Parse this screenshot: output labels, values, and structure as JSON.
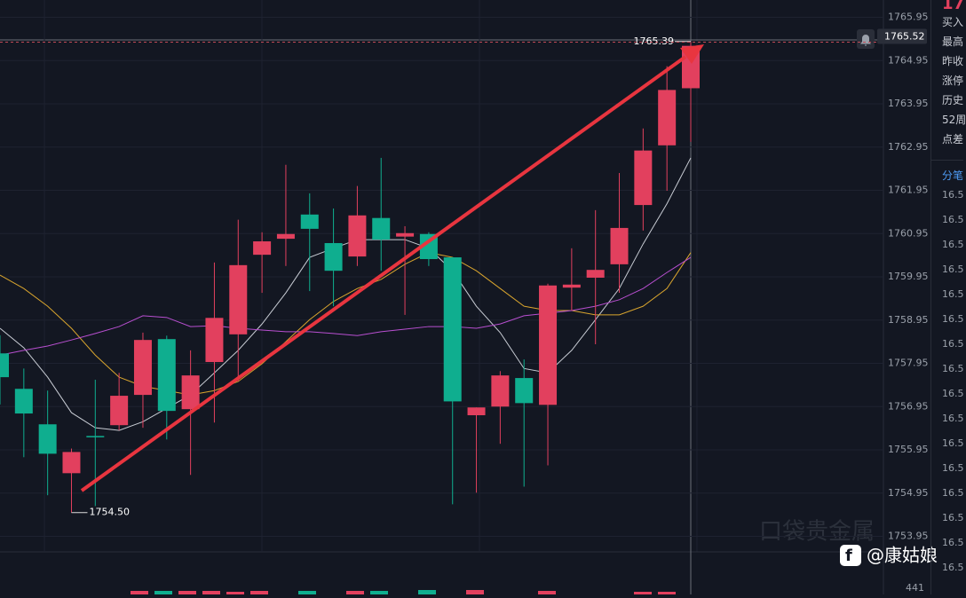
{
  "chart_data": {
    "type": "candlestick",
    "open": [
      1758.18,
      1757.36,
      1756.54,
      1755.41,
      1756.27,
      1756.52,
      1757.22,
      1758.51,
      1756.89,
      1757.98,
      1758.62,
      1760.46,
      1760.83,
      1761.39,
      1760.73,
      1760.42,
      1761.31,
      1760.88,
      1760.94,
      1760.4,
      1756.75,
      1756.95,
      1757.61,
      1756.99,
      1759.7,
      1759.93,
      1760.24,
      1761.61,
      1762.99,
      1764.31
    ],
    "high": [
      1758.6,
      1757.83,
      1757.32,
      1755.98,
      1757.57,
      1757.73,
      1758.66,
      1758.59,
      1758.25,
      1760.28,
      1761.27,
      1760.98,
      1762.54,
      1761.88,
      1761.53,
      1762.05,
      1762.7,
      1761.12,
      1760.98,
      1760.4,
      1756.93,
      1757.77,
      1758.04,
      1759.79,
      1760.61,
      1761.49,
      1762.35,
      1763.38,
      1764.82,
      1765.39
    ],
    "low": [
      1757.0,
      1755.78,
      1754.9,
      1754.5,
      1754.65,
      1756.4,
      1756.46,
      1756.19,
      1755.37,
      1756.58,
      1757.53,
      1759.58,
      1760.2,
      1759.62,
      1759.27,
      1760.2,
      1760.09,
      1759.07,
      1760.2,
      1754.69,
      1754.96,
      1756.09,
      1755.1,
      1755.59,
      1759.17,
      1758.39,
      1759.58,
      1761.02,
      1761.94,
      1763.07
    ],
    "close": [
      1757.63,
      1756.79,
      1755.86,
      1755.9,
      1756.25,
      1757.2,
      1758.49,
      1756.85,
      1757.67,
      1759.0,
      1760.22,
      1760.77,
      1760.94,
      1761.06,
      1760.09,
      1761.37,
      1760.81,
      1760.96,
      1760.36,
      1757.07,
      1756.93,
      1757.67,
      1757.03,
      1759.75,
      1759.77,
      1760.11,
      1761.08,
      1762.87,
      1764.27,
      1765.29
    ],
    "up_color": "#e2405e",
    "down_color": "#0fae8f",
    "overlays": [
      {
        "color": "#c8ccd4",
        "values": [
          1758.76,
          1758.31,
          1757.63,
          1756.81,
          1756.46,
          1756.4,
          1756.6,
          1756.91,
          1757.22,
          1757.73,
          1758.25,
          1758.86,
          1759.58,
          1760.4,
          1760.61,
          1760.81,
          1760.81,
          1760.81,
          1760.61,
          1760.09,
          1759.27,
          1758.66,
          1757.83,
          1757.73,
          1758.25,
          1758.96,
          1759.68,
          1760.71,
          1761.64,
          1762.7
        ]
      },
      {
        "color": "#d9a52e",
        "values": [
          1759.99,
          1759.68,
          1759.27,
          1758.76,
          1758.14,
          1757.63,
          1757.42,
          1757.32,
          1757.22,
          1757.32,
          1757.53,
          1757.94,
          1758.45,
          1758.96,
          1759.38,
          1759.68,
          1759.89,
          1760.24,
          1760.51,
          1760.4,
          1760.09,
          1759.68,
          1759.27,
          1759.17,
          1759.17,
          1759.07,
          1759.07,
          1759.27,
          1759.68,
          1760.51
        ]
      },
      {
        "color": "#b84fd0",
        "values": [
          1758.14,
          1758.25,
          1758.35,
          1758.49,
          1758.64,
          1758.8,
          1759.05,
          1759.01,
          1758.8,
          1758.82,
          1758.76,
          1758.72,
          1758.68,
          1758.68,
          1758.64,
          1758.59,
          1758.68,
          1758.74,
          1758.8,
          1758.8,
          1758.76,
          1758.86,
          1759.05,
          1759.11,
          1759.17,
          1759.27,
          1759.42,
          1759.68,
          1760.05,
          1760.4
        ]
      }
    ],
    "ylim": [
      1753.55,
      1766.35
    ],
    "yticks": [
      1765.95,
      1764.95,
      1763.95,
      1762.95,
      1761.95,
      1760.95,
      1759.95,
      1758.95,
      1757.95,
      1756.95,
      1755.95,
      1754.95,
      1753.95
    ],
    "grid": true,
    "annotations": [
      {
        "value": 1765.39,
        "label": "1765.39"
      },
      {
        "value": 1754.5,
        "label": "1754.50"
      }
    ],
    "last_price": 1765.52,
    "volume_label": "441"
  },
  "side_panel": {
    "corner": "17",
    "labels": [
      "买入",
      "最高",
      "昨收",
      "涨停",
      "历史",
      "52周",
      "点差"
    ],
    "tab": "分笔",
    "rows": [
      "16.5",
      "16.5",
      "16.5",
      "16.5",
      "16.5",
      "16.5",
      "16.5",
      "16.5",
      "16.5",
      "16.5",
      "16.5",
      "16.5",
      "16.5",
      "16.5",
      "16.5",
      "16.5"
    ]
  },
  "watermark": "口袋贵金属",
  "credit": "@康姑娘"
}
